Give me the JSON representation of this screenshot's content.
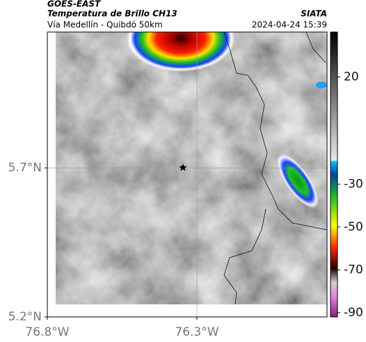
{
  "header": {
    "title": "GOES-EAST",
    "subtitle": "Temperatura de Brillo CH13",
    "source": "SIATA",
    "route": "Vía Medellín - Quibdó 50km",
    "datetime": "2024-04-24 15:39"
  },
  "map": {
    "xlim": [
      -76.8,
      -75.865
    ],
    "ylim": [
      5.2,
      6.156
    ],
    "xticks": [
      {
        "value": -76.8,
        "label": "76.8°W"
      },
      {
        "value": -76.3,
        "label": "76.3°W"
      }
    ],
    "yticks": [
      {
        "value": 5.7,
        "label": "5.7°N"
      },
      {
        "value": 5.2,
        "label": "5.2°N"
      }
    ],
    "grid": true
  },
  "colorbar": {
    "clim": [
      -92,
      41
    ],
    "ticks": [
      20,
      -30,
      -50,
      -70,
      -90
    ]
  }
}
